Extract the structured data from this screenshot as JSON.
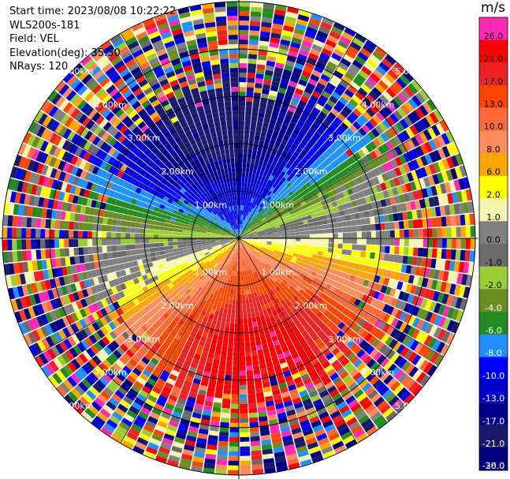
{
  "info": {
    "start_time": "Start time: 2023/08/08 10:22:22",
    "instrument": "WLS200s-181",
    "field": "Field: VEL",
    "elevation": "Elevation(deg): 35.30",
    "nrays": "NRays: 120"
  },
  "chart_data": {
    "type": "heatmap",
    "projection": "polar-ppi",
    "range_rings_km": [
      1,
      2,
      3,
      4,
      5
    ],
    "ring_labels": [
      "1.00km",
      "2.00km",
      "3.00km",
      "4.00km",
      "5.00km"
    ],
    "n_rays": 120,
    "colorbar": {
      "unit": "m/s",
      "tick_labels": [
        "26.0",
        "21.0",
        "17.0",
        "13.0",
        "10.0",
        "8.0",
        "6.0",
        "2.0",
        "1.0",
        "0.0",
        "-1.0",
        "-2.0",
        "-4.0",
        "-6.0",
        "-8.0",
        "-10.0",
        "-13.0",
        "-17.0",
        "-21.0",
        "-26.0",
        "-30.0"
      ],
      "colors": [
        "#ff2ab4",
        "#ff0000",
        "#ee2222",
        "#ff4500",
        "#ff6a38",
        "#ff8c5a",
        "#ffa500",
        "#ffff00",
        "#f5f5b0",
        "#808080",
        "#6b6b6b",
        "#9acd32",
        "#6b8e23",
        "#228b22",
        "#1e90ff",
        "#0000ff",
        "#0000cd",
        "#00008b",
        "#191970",
        "#000080"
      ]
    }
  }
}
